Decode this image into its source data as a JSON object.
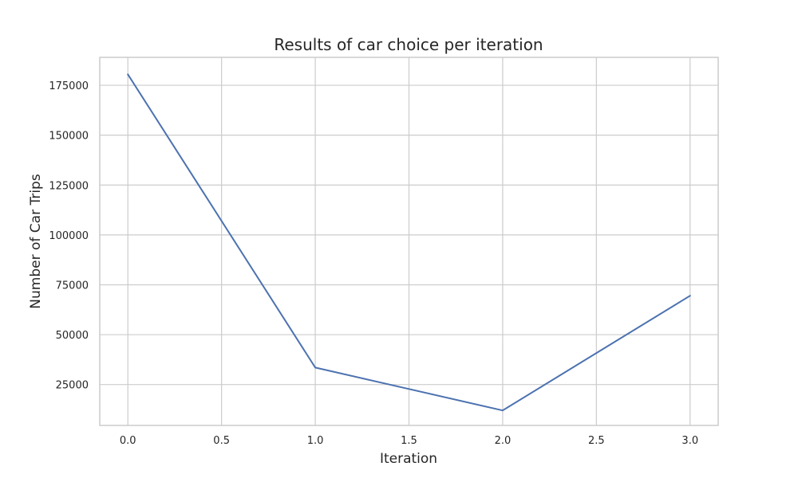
{
  "chart_data": {
    "type": "line",
    "title": "Results of car choice per iteration",
    "xlabel": "Iteration",
    "ylabel": "Number of Car Trips",
    "xlim": [
      -0.15,
      3.15
    ],
    "ylim": [
      4500,
      189000
    ],
    "x_ticks": [
      "0.0",
      "0.5",
      "1.0",
      "1.5",
      "2.0",
      "2.5",
      "3.0"
    ],
    "y_ticks": [
      "25000",
      "50000",
      "75000",
      "100000",
      "125000",
      "150000",
      "175000"
    ],
    "grid": true,
    "series": [
      {
        "x": [
          0,
          1,
          2,
          3
        ],
        "values": [
          180500,
          33500,
          12000,
          69500
        ],
        "color": "#4c72b0"
      }
    ]
  }
}
